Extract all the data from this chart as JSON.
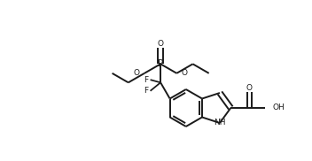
{
  "background": "#ffffff",
  "line_color": "#1a1a1a",
  "line_width": 1.4,
  "figsize": [
    3.52,
    1.82
  ],
  "dpi": 100,
  "xlim": [
    0,
    352
  ],
  "ylim": [
    0,
    182
  ]
}
